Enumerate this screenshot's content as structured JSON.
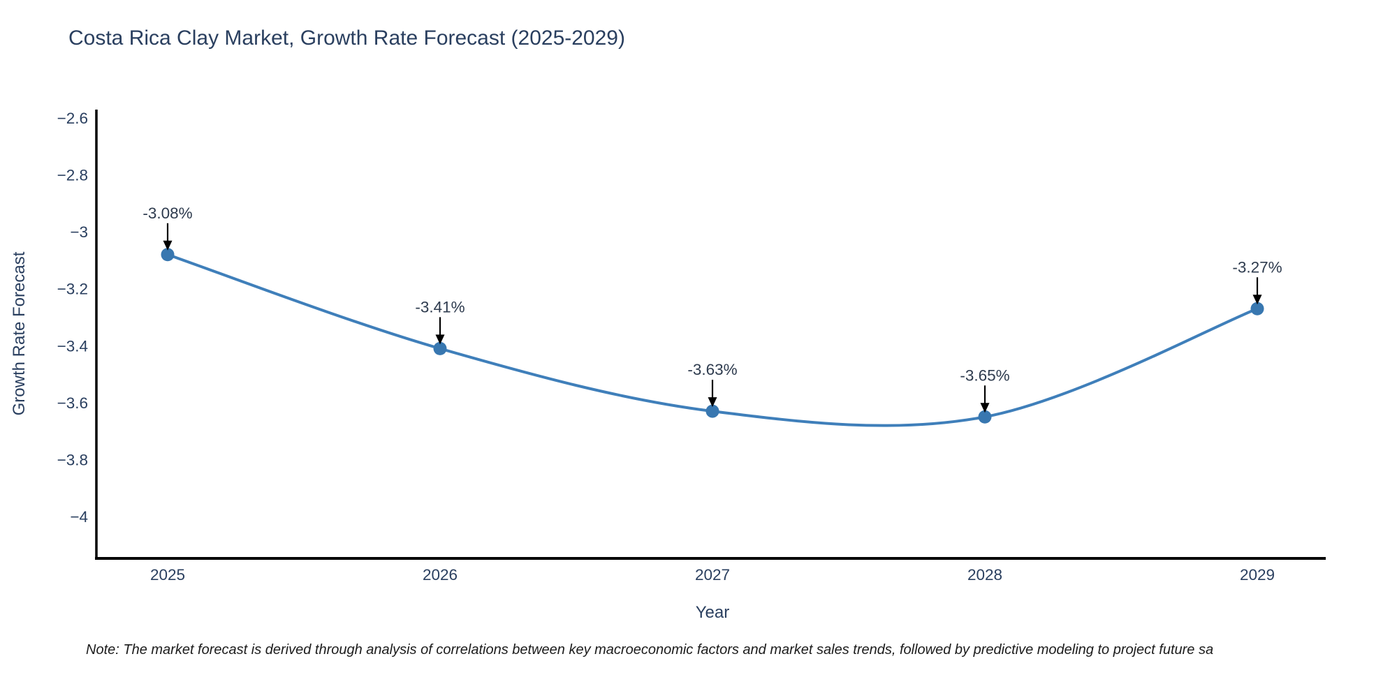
{
  "title": "Costa Rica Clay Market, Growth Rate Forecast (2025-2029)",
  "note": "Note: The market forecast is derived through analysis of correlations between key macroeconomic factors and market sales trends, followed by predictive modeling to project future sa",
  "colors": {
    "line": "#3f7fba",
    "marker": "#3877b0",
    "text": "#2a3f5f",
    "annotation_text": "#2e3b4e",
    "axis": "#000000",
    "arrow": "#000000"
  },
  "chart_data": {
    "type": "line",
    "title": "Costa Rica Clay Market, Growth Rate Forecast (2025-2029)",
    "xlabel": "Year",
    "ylabel": "Growth Rate Forecast",
    "x": [
      2025,
      2026,
      2027,
      2028,
      2029
    ],
    "xtick_labels": [
      "2025",
      "2026",
      "2027",
      "2028",
      "2029"
    ],
    "series": [
      {
        "name": "Growth Rate Forecast",
        "values": [
          -3.08,
          -3.41,
          -3.63,
          -3.65,
          -3.27
        ]
      }
    ],
    "point_labels": [
      "-3.08%",
      "-3.41%",
      "-3.63%",
      "-3.65%",
      "-3.27%"
    ],
    "ylim": [
      -4.15,
      -2.57
    ],
    "yticks": [
      -2.6,
      -2.8,
      -3,
      -3.2,
      -3.4,
      -3.6,
      -3.8,
      -4
    ],
    "ytick_labels": [
      "−2.6",
      "−2.8",
      "−3",
      "−3.2",
      "−3.4",
      "−3.6",
      "−3.8",
      "−4"
    ],
    "line_shape": "spline",
    "grid": false,
    "legend_position": "none"
  }
}
